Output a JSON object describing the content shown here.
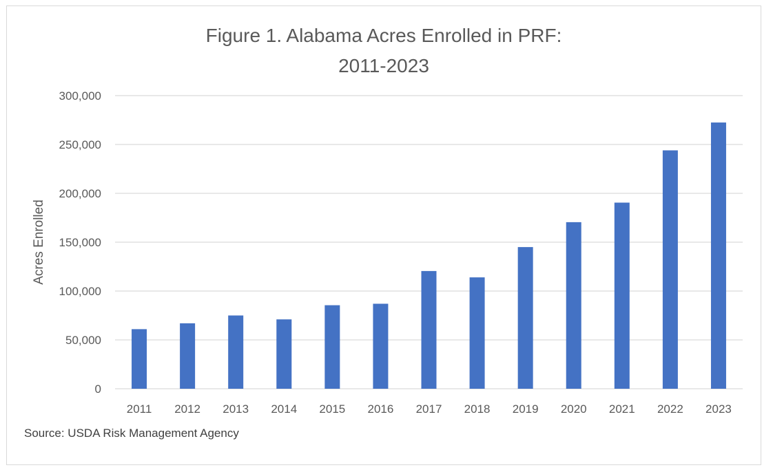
{
  "chart_data": {
    "type": "bar",
    "title_lines": [
      "Figure 1. Alabama Acres Enrolled in PRF:",
      "2011-2023"
    ],
    "xlabel": "",
    "ylabel": "Acres Enrolled",
    "categories": [
      "2011",
      "2012",
      "2013",
      "2014",
      "2015",
      "2016",
      "2017",
      "2018",
      "2019",
      "2020",
      "2021",
      "2022",
      "2023"
    ],
    "values": [
      61000,
      67000,
      75000,
      71000,
      85500,
      87000,
      120500,
      114000,
      145000,
      170500,
      190500,
      244000,
      272500
    ],
    "ylim": [
      0,
      300000
    ],
    "yticks": [
      0,
      50000,
      100000,
      150000,
      200000,
      250000,
      300000
    ],
    "ytick_labels": [
      "0",
      "50,000",
      "100,000",
      "150,000",
      "200,000",
      "250,000",
      "300,000"
    ],
    "grid": true,
    "bar_color": "#4472C4",
    "grid_color": "#d9d9d9"
  },
  "source": "Source: USDA Risk Management Agency"
}
